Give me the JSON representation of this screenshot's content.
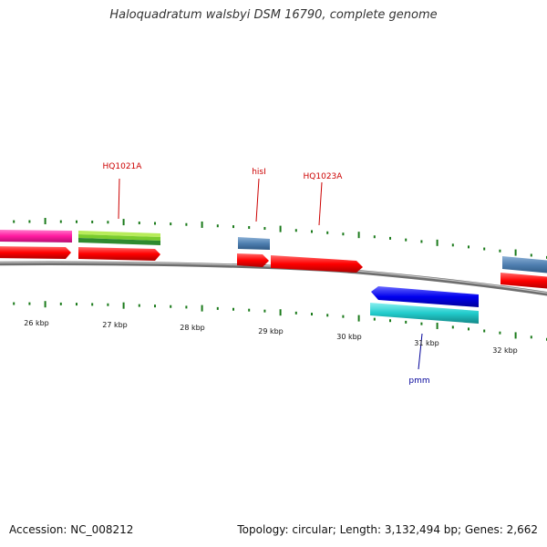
{
  "title": "Haloquadratum walsbyi DSM 16790, complete genome",
  "footer": {
    "accession": "Accession: NC_008212",
    "summary": "Topology: circular; Length: 3,132,494 bp; Genes: 2,662"
  },
  "scale_labels": [
    "26 kbp",
    "27 kbp",
    "28 kbp",
    "29 kbp",
    "30 kbp",
    "31 kbp",
    "32 kbp"
  ],
  "gene_labels": [
    {
      "text": "HQ1021A",
      "color": "#cc0000"
    },
    {
      "text": "hisI",
      "color": "#cc0000"
    },
    {
      "text": "HQ1023A",
      "color": "#cc0000"
    },
    {
      "text": "pmm",
      "color": "#000099"
    }
  ],
  "colors": {
    "backbone": "#8a8a8a",
    "tick": "#1a7a1a",
    "cds_red": "#ff0000",
    "steelblue": "#4f7fb0",
    "magenta": "#ff1aa0",
    "lime": "#99dd33",
    "green": "#2e8b2e",
    "blue": "#0000ee",
    "cyan": "#22cccc"
  }
}
